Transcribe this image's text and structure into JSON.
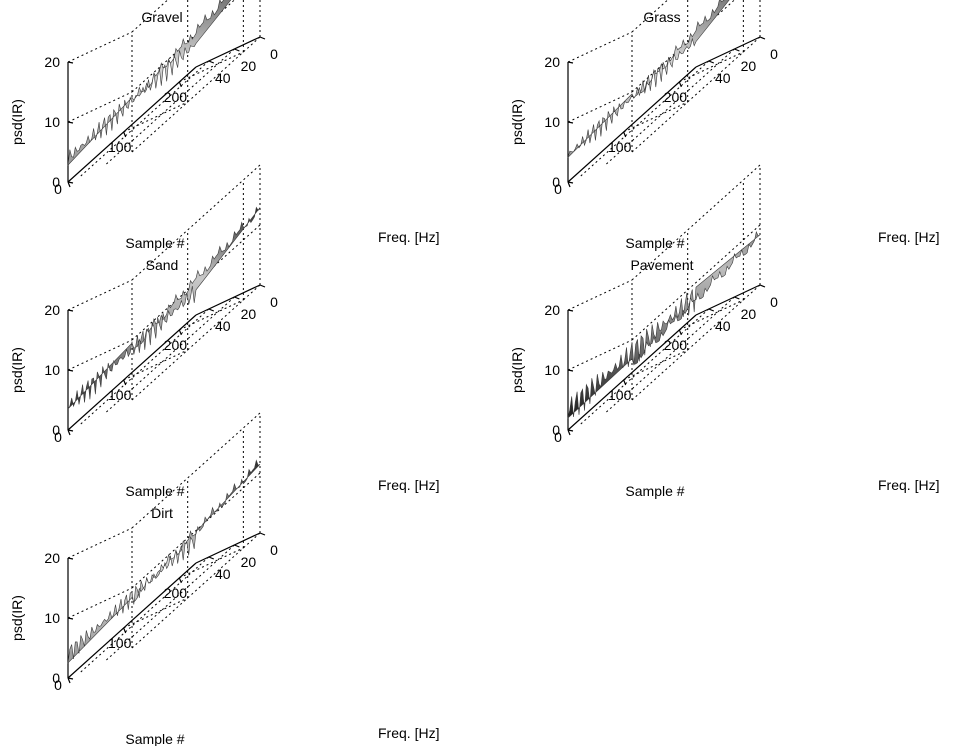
{
  "chart_data": [
    {
      "type": "surface",
      "title": "Gravel",
      "zlabel": "psd(IR)",
      "xlabel": "Sample #",
      "ylabel": "Freq. [Hz]",
      "zticks": [
        "0",
        "10",
        "20"
      ],
      "xticks": [
        "0",
        "100",
        "200"
      ],
      "yticks": [
        "0",
        "20",
        "40"
      ],
      "xlim": [
        0,
        230
      ],
      "ylim": [
        0,
        50
      ],
      "zlim": [
        0,
        20
      ],
      "grid": true,
      "surface": {
        "low_freq_level": 12.5,
        "high_freq_level": 4.5,
        "ripple": 1.4,
        "shade": "light"
      }
    },
    {
      "type": "surface",
      "title": "Grass",
      "zlabel": "psd(IR)",
      "xlabel": "Sample #",
      "ylabel": "Freq. [Hz]",
      "zticks": [
        "0",
        "10",
        "20"
      ],
      "xticks": [
        "0",
        "100",
        "200"
      ],
      "yticks": [
        "0",
        "20",
        "40"
      ],
      "xlim": [
        0,
        230
      ],
      "ylim": [
        0,
        50
      ],
      "zlim": [
        0,
        20
      ],
      "grid": true,
      "surface": {
        "low_freq_level": 12.5,
        "high_freq_level": 5.0,
        "ripple": 1.3,
        "shade": "light"
      }
    },
    {
      "type": "surface",
      "title": "Sand",
      "zlabel": "psd(IR)",
      "xlabel": "Sample #",
      "ylabel": "Freq. [Hz]",
      "zticks": [
        "0",
        "10",
        "20"
      ],
      "xticks": [
        "0",
        "100",
        "200"
      ],
      "yticks": [
        "0",
        "20",
        "40"
      ],
      "xlim": [
        0,
        230
      ],
      "ylim": [
        0,
        50
      ],
      "zlim": [
        0,
        20
      ],
      "grid": true,
      "surface": {
        "low_freq_level": 12.5,
        "high_freq_level": 4.5,
        "ripple": 1.5,
        "shade": "medium"
      }
    },
    {
      "type": "surface",
      "title": "Pavement",
      "zlabel": "psd(IR)",
      "xlabel": "Sample #",
      "ylabel": "Freq. [Hz]",
      "zticks": [
        "0",
        "10",
        "20"
      ],
      "xticks": [
        "0",
        "100",
        "200"
      ],
      "yticks": [
        "0",
        "20",
        "40"
      ],
      "xlim": [
        0,
        230
      ],
      "ylim": [
        0,
        50
      ],
      "zlim": [
        0,
        20
      ],
      "grid": true,
      "surface": {
        "low_freq_level": 8.0,
        "high_freq_level": 4.0,
        "ripple": 1.8,
        "shade": "dark"
      }
    },
    {
      "type": "surface",
      "title": "Dirt",
      "zlabel": "psd(IR)",
      "xlabel": "Sample #",
      "ylabel": "Freq. [Hz]",
      "zticks": [
        "0",
        "10",
        "20"
      ],
      "xticks": [
        "0",
        "100",
        "200"
      ],
      "yticks": [
        "0",
        "20",
        "40"
      ],
      "xlim": [
        0,
        230
      ],
      "ylim": [
        0,
        50
      ],
      "zlim": [
        0,
        20
      ],
      "grid": true,
      "surface": {
        "low_freq_level": 11.5,
        "high_freq_level": 4.5,
        "ripple": 1.2,
        "shade": "light"
      }
    }
  ]
}
